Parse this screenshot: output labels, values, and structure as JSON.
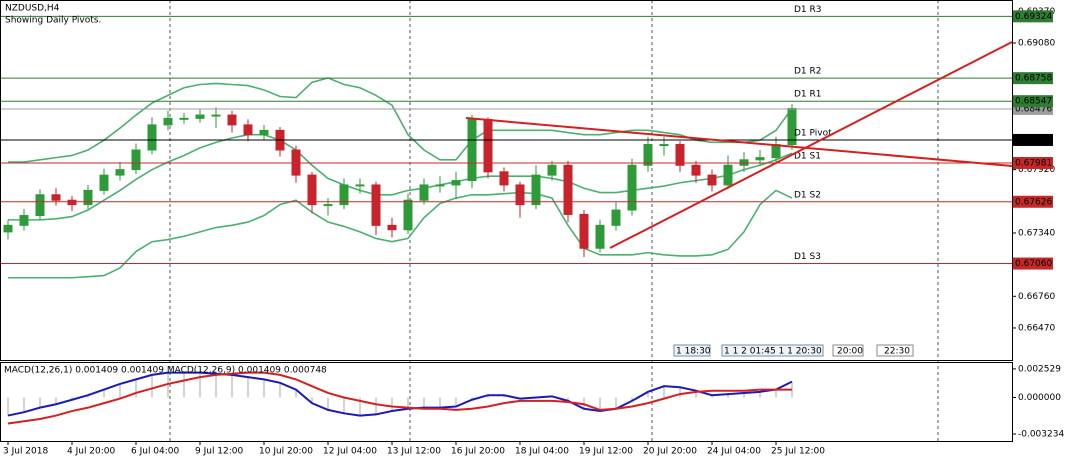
{
  "header": {
    "symbol": "NZDUSD,H4",
    "note": "Showing Daily Pivots."
  },
  "time_markers": [
    "1 18:30",
    "1 1 2 01:45 1 1 20:30",
    "20:00",
    "22:30"
  ],
  "chart_data": [
    {
      "type": "candlestick",
      "categories": [
        "3 Jul 2018",
        null,
        null,
        null,
        "4 Jul 20:00",
        null,
        null,
        null,
        "6 Jul 04:00",
        null,
        null,
        null,
        "9 Jul 12:00",
        null,
        null,
        null,
        "10 Jul 20:00",
        null,
        null,
        null,
        "12 Jul 04:00",
        null,
        null,
        null,
        "13 Jul 12:00",
        null,
        null,
        null,
        "16 Jul 20:00",
        null,
        null,
        null,
        "18 Jul 04:00",
        null,
        null,
        null,
        "19 Jul 12:00",
        null,
        null,
        null,
        "20 Jul 20:00",
        null,
        null,
        null,
        "24 Jul 04:00",
        null,
        null,
        null,
        "25 Jul 12:00",
        null
      ],
      "open": [
        0.6735,
        0.6741,
        0.675,
        0.6769,
        0.6764,
        0.676,
        0.6773,
        0.6787,
        0.6792,
        0.681,
        0.6833,
        0.6839,
        0.6839,
        0.6842,
        0.6842,
        0.6833,
        0.6824,
        0.6828,
        0.681,
        0.6787,
        0.676,
        0.676,
        0.6778,
        0.6778,
        0.6741,
        0.6737,
        0.6764,
        0.6778,
        0.6778,
        0.6782,
        0.6838,
        0.679,
        0.6778,
        0.676,
        0.6787,
        0.6796,
        0.6751,
        0.672,
        0.6741,
        0.6755,
        0.6796,
        0.6815,
        0.6815,
        0.6796,
        0.6787,
        0.6778,
        0.6796,
        0.6801,
        0.6803,
        0.6815
      ],
      "high": [
        0.6746,
        0.6756,
        0.6774,
        0.6775,
        0.6768,
        0.6778,
        0.6793,
        0.6799,
        0.6816,
        0.684,
        0.6846,
        0.6844,
        0.6848,
        0.6849,
        0.6846,
        0.6838,
        0.6833,
        0.6831,
        0.6814,
        0.679,
        0.6766,
        0.6784,
        0.6784,
        0.6781,
        0.6748,
        0.677,
        0.6784,
        0.6786,
        0.679,
        0.6842,
        0.684,
        0.6794,
        0.6781,
        0.6796,
        0.68,
        0.68,
        0.6755,
        0.6746,
        0.6762,
        0.6802,
        0.6822,
        0.6822,
        0.6818,
        0.68,
        0.6792,
        0.6805,
        0.6808,
        0.681,
        0.6822,
        0.6852
      ],
      "low": [
        0.6728,
        0.6736,
        0.6746,
        0.6759,
        0.6754,
        0.6756,
        0.6769,
        0.6782,
        0.6788,
        0.6806,
        0.6828,
        0.6834,
        0.6835,
        0.683,
        0.6826,
        0.6818,
        0.6819,
        0.6804,
        0.678,
        0.6752,
        0.675,
        0.6756,
        0.677,
        0.6732,
        0.673,
        0.6733,
        0.676,
        0.6771,
        0.6765,
        0.6775,
        0.6784,
        0.6772,
        0.6748,
        0.6756,
        0.6782,
        0.6744,
        0.6712,
        0.6716,
        0.6736,
        0.675,
        0.679,
        0.6805,
        0.679,
        0.678,
        0.6772,
        0.6774,
        0.679,
        0.6796,
        0.6798,
        0.681
      ],
      "close": [
        0.6741,
        0.675,
        0.6769,
        0.6764,
        0.676,
        0.6773,
        0.6787,
        0.6792,
        0.681,
        0.6833,
        0.6839,
        0.6839,
        0.6842,
        0.6842,
        0.6833,
        0.6824,
        0.6828,
        0.681,
        0.6787,
        0.676,
        0.676,
        0.6778,
        0.6778,
        0.6741,
        0.6737,
        0.6764,
        0.6778,
        0.6778,
        0.6782,
        0.6838,
        0.679,
        0.6778,
        0.676,
        0.6787,
        0.6796,
        0.6751,
        0.672,
        0.6741,
        0.6755,
        0.6796,
        0.6815,
        0.6815,
        0.6796,
        0.6787,
        0.6778,
        0.6796,
        0.6801,
        0.6803,
        0.6815,
        0.6848
      ],
      "bull_color": "#2e9a3a",
      "bear_color": "#c8232c",
      "bands": {
        "color": "#4caf72",
        "upper": [
          0.6799,
          0.6799,
          0.6801,
          0.6803,
          0.6805,
          0.681,
          0.6819,
          0.683,
          0.6842,
          0.6853,
          0.686,
          0.6867,
          0.687,
          0.6871,
          0.687,
          0.6869,
          0.6865,
          0.6859,
          0.6858,
          0.6872,
          0.6876,
          0.687,
          0.6867,
          0.686,
          0.6851,
          0.6824,
          0.681,
          0.6801,
          0.6801,
          0.6819,
          0.6828,
          0.6828,
          0.6828,
          0.6828,
          0.6828,
          0.6826,
          0.6824,
          0.6824,
          0.6826,
          0.6828,
          0.6828,
          0.6826,
          0.6824,
          0.6819,
          0.6817,
          0.6817,
          0.6817,
          0.6819,
          0.6828,
          0.6848
        ],
        "middle": [
          0.6746,
          0.6746,
          0.6746,
          0.6747,
          0.6749,
          0.6755,
          0.6764,
          0.6773,
          0.6783,
          0.6792,
          0.6799,
          0.6805,
          0.6812,
          0.6817,
          0.6821,
          0.6824,
          0.6824,
          0.6819,
          0.681,
          0.6796,
          0.6784,
          0.6778,
          0.6773,
          0.6769,
          0.6769,
          0.6773,
          0.6775,
          0.6778,
          0.6781,
          0.6784,
          0.6786,
          0.6786,
          0.6786,
          0.6786,
          0.6784,
          0.6781,
          0.6775,
          0.6771,
          0.6771,
          0.6773,
          0.6775,
          0.6777,
          0.678,
          0.6782,
          0.6784,
          0.6787,
          0.6792,
          0.6796,
          0.6801,
          0.6807
        ],
        "lower": [
          0.6693,
          0.6693,
          0.6693,
          0.6693,
          0.6693,
          0.6694,
          0.6695,
          0.6702,
          0.6717,
          0.6726,
          0.6728,
          0.6731,
          0.6735,
          0.6739,
          0.6741,
          0.6744,
          0.675,
          0.676,
          0.6764,
          0.6753,
          0.6744,
          0.674,
          0.6735,
          0.6729,
          0.6726,
          0.6729,
          0.6748,
          0.6761,
          0.6766,
          0.6769,
          0.6769,
          0.677,
          0.6771,
          0.677,
          0.6766,
          0.6741,
          0.672,
          0.6714,
          0.6714,
          0.6714,
          0.6716,
          0.6714,
          0.6713,
          0.6713,
          0.6714,
          0.6719,
          0.6735,
          0.676,
          0.6773,
          0.6766
        ]
      },
      "levels": [
        {
          "name": "D1 R3",
          "value": 0.69324,
          "color": "#2e7d32"
        },
        {
          "name": "D1 R2",
          "value": 0.68758,
          "color": "#2e7d32"
        },
        {
          "name": "D1 R1",
          "value": 0.68547,
          "color": "#2e7d32"
        },
        {
          "name": "D1 Pivot",
          "value": 0.68192,
          "color": "#000000"
        },
        {
          "name": "D1 S1",
          "value": 0.67981,
          "color": "#c62828"
        },
        {
          "name": "D1 S2",
          "value": 0.67626,
          "color": "#c62828"
        },
        {
          "name": "D1 S3",
          "value": {
            "value": 0.6706,
            "label": "0.67060"
          },
          "color": "#c62828"
        }
      ],
      "current_price": {
        "value": 0.68476,
        "color": "#9e9e9e"
      },
      "ylim": [
        0.66195,
        0.69428
      ],
      "yticks": [
        {
          "value": 0.6937,
          "label": "0.69370"
        },
        {
          "value": 0.6908,
          "label": "0.69080"
        },
        {
          "value": 0.6792,
          "label": "0.67920"
        },
        {
          "value": 0.6734,
          "label": "0.67340"
        },
        {
          "value": 0.6676,
          "label": "0.66760"
        },
        {
          "value": 0.6647,
          "label": "0.66470"
        }
      ]
    },
    {
      "type": "macd",
      "title": "MACD(12,26,1) 0.001409 0.001409 MACD(12,26,9) 0.001409 0.000748",
      "histogram_color": "#a8a8a8",
      "series": [
        {
          "color": "#1a1ab8",
          "values": [
            -0.0016,
            -0.0013,
            -0.0009,
            -0.0006,
            -0.0002,
            0.0002,
            0.0007,
            0.0012,
            0.0016,
            0.002,
            0.0022,
            0.0022,
            0.0022,
            0.0021,
            0.002,
            0.0018,
            0.0016,
            0.0013,
            0.0007,
            -0.0005,
            -0.0011,
            -0.0014,
            -0.0016,
            -0.0015,
            -0.0012,
            -0.001,
            -0.0009,
            -0.0009,
            -0.0008,
            -0.0002,
            0.0002,
            0.0002,
            -0.0001,
            0.0,
            0.0001,
            -0.0003,
            -0.001,
            -0.0012,
            -0.001,
            -0.0003,
            0.0005,
            0.001,
            0.0009,
            0.0006,
            0.0002,
            0.0003,
            0.0004,
            0.0005,
            0.0007,
            0.0014
          ]
        },
        {
          "color": "#d42020",
          "values": [
            -0.0023,
            -0.0021,
            -0.0019,
            -0.0016,
            -0.0012,
            -0.0009,
            -0.0005,
            -0.0001,
            0.0004,
            0.0008,
            0.0012,
            0.0015,
            0.0018,
            0.002,
            0.0021,
            0.0022,
            0.0022,
            0.002,
            0.0016,
            0.001,
            0.0004,
            0.0,
            -0.0003,
            -0.0006,
            -0.0008,
            -0.0009,
            -0.001,
            -0.001,
            -0.0011,
            -0.001,
            -0.0008,
            -0.0005,
            -0.0003,
            -0.0003,
            -0.0003,
            -0.0004,
            -0.0006,
            -0.0011,
            -0.001,
            -0.0008,
            -0.0005,
            -0.0001,
            0.0003,
            0.0005,
            0.0006,
            0.0006,
            0.0006,
            0.0007,
            0.0007,
            0.0007
          ]
        }
      ],
      "ylim": [
        -0.00385,
        0.00305
      ],
      "yticks": [
        0.002529,
        {
          "value": 0,
          "label": "0.000000"
        },
        -0.003234
      ]
    }
  ]
}
